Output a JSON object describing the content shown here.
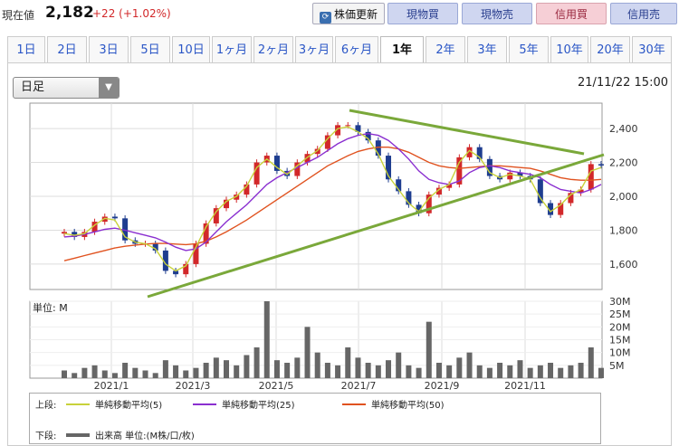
{
  "header": {
    "price_label": "現在値",
    "price_value": "2,182",
    "price_change": "+22 (+1.02%)",
    "refresh_label": "株価更新",
    "buttons": [
      {
        "label": "現物買",
        "style": "blue"
      },
      {
        "label": "現物売",
        "style": "blue"
      },
      {
        "label": "信用買",
        "style": "pink"
      },
      {
        "label": "信用売",
        "style": "blue"
      }
    ]
  },
  "tabs": [
    "1日",
    "2日",
    "3日",
    "5日",
    "10日",
    "1ヶ月",
    "2ヶ月",
    "3ヶ月",
    "6ヶ月",
    "1年",
    "2年",
    "3年",
    "5年",
    "10年",
    "20年",
    "30年"
  ],
  "active_tab": "1年",
  "period_select": "日足",
  "timestamp": "21/11/22 15:00",
  "volume_unit_label": "単位: M",
  "legend": {
    "upper_label": "上段:",
    "lower_label": "下段:",
    "sma5": "単純移動平均(5)",
    "sma25": "単純移動平均(25)",
    "sma50": "単純移動平均(50)",
    "volume": "出来高 単位:(M株/口/枚)"
  },
  "colors": {
    "up": "#d2282a",
    "down": "#1e3d8f",
    "sma5": "#c8d23a",
    "sma25": "#8a2fd0",
    "sma50": "#e0521f",
    "trend": "#7aa83a",
    "volume": "#666666"
  },
  "chart_data": {
    "type": "line",
    "x_tick_labels": [
      "2021/1",
      "2021/3",
      "2021/5",
      "2021/7",
      "2021/9",
      "2021/11"
    ],
    "price_axis": {
      "ticks": [
        "2,400",
        "2,200",
        "2,000",
        "1,800",
        "1,600"
      ],
      "ylim": [
        1450,
        2550
      ]
    },
    "volume_axis": {
      "ticks": [
        "30M",
        "25M",
        "20M",
        "15M",
        "10M",
        "5M"
      ],
      "ylim": [
        0,
        30
      ]
    },
    "close": [
      1790,
      1760,
      1790,
      1850,
      1880,
      1870,
      1740,
      1720,
      1720,
      1680,
      1560,
      1540,
      1600,
      1720,
      1840,
      1930,
      1980,
      2010,
      2070,
      2200,
      2240,
      2150,
      2120,
      2200,
      2250,
      2280,
      2360,
      2420,
      2420,
      2380,
      2330,
      2240,
      2100,
      2030,
      1950,
      1900,
      2010,
      2050,
      2070,
      2230,
      2290,
      2220,
      2120,
      2100,
      2140,
      2120,
      2100,
      1960,
      1890,
      1960,
      2020,
      2040,
      2190,
      2182
    ],
    "sma5": [
      1780,
      1770,
      1780,
      1830,
      1870,
      1860,
      1760,
      1730,
      1720,
      1690,
      1600,
      1560,
      1590,
      1700,
      1820,
      1910,
      1970,
      2000,
      2060,
      2170,
      2220,
      2170,
      2130,
      2180,
      2230,
      2270,
      2340,
      2400,
      2410,
      2380,
      2340,
      2250,
      2120,
      2040,
      1960,
      1910,
      1990,
      2040,
      2070,
      2200,
      2270,
      2230,
      2140,
      2110,
      2130,
      2120,
      2100,
      1990,
      1910,
      1950,
      2010,
      2040,
      2150,
      2170
    ],
    "sma25": [
      1760,
      1765,
      1775,
      1790,
      1805,
      1812,
      1800,
      1785,
      1770,
      1755,
      1730,
      1700,
      1680,
      1690,
      1730,
      1790,
      1850,
      1900,
      1950,
      2010,
      2070,
      2110,
      2140,
      2170,
      2200,
      2230,
      2270,
      2310,
      2340,
      2360,
      2370,
      2360,
      2330,
      2280,
      2220,
      2150,
      2100,
      2080,
      2070,
      2090,
      2140,
      2170,
      2180,
      2170,
      2150,
      2140,
      2130,
      2110,
      2070,
      2040,
      2030,
      2020,
      2040,
      2070
    ],
    "sma50": [
      1620,
      1635,
      1650,
      1665,
      1680,
      1695,
      1705,
      1712,
      1718,
      1722,
      1722,
      1718,
      1715,
      1720,
      1735,
      1760,
      1790,
      1825,
      1860,
      1900,
      1940,
      1980,
      2020,
      2060,
      2100,
      2140,
      2180,
      2210,
      2240,
      2265,
      2280,
      2290,
      2290,
      2280,
      2260,
      2230,
      2200,
      2180,
      2170,
      2165,
      2170,
      2175,
      2180,
      2180,
      2175,
      2170,
      2165,
      2150,
      2130,
      2110,
      2100,
      2095,
      2095,
      2100
    ],
    "volume": [
      3,
      2,
      4,
      5,
      3,
      2,
      6,
      4,
      3,
      2,
      7,
      5,
      3,
      4,
      6,
      8,
      7,
      5,
      9,
      12,
      30,
      7,
      6,
      8,
      20,
      10,
      6,
      5,
      12,
      8,
      6,
      5,
      7,
      10,
      5,
      4,
      22,
      6,
      5,
      8,
      10,
      5,
      4,
      6,
      5,
      7,
      4,
      5,
      6,
      4,
      5,
      6,
      12,
      4
    ]
  }
}
